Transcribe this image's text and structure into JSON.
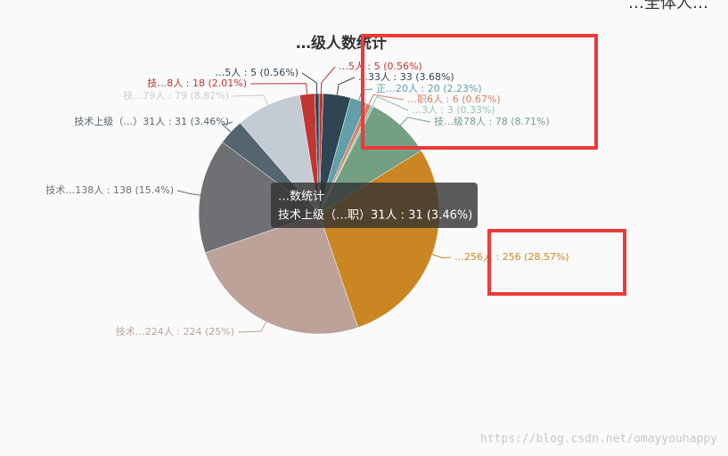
{
  "chart_data": {
    "type": "pie",
    "title": "…级人数统计",
    "corner_text": "…全体人…",
    "categories": [
      "…5人",
      "…33人",
      "正…20人",
      "…职6人",
      "…3人",
      "技…级78人",
      "…256人",
      "技术…224人",
      "技术…138人",
      "技术上级（…）31人",
      "技…79人",
      "技…8人",
      "…5人"
    ],
    "values": [
      5,
      33,
      20,
      6,
      3,
      78,
      256,
      224,
      138,
      31,
      79,
      18,
      5
    ],
    "value_labels": [
      "…5人 : 5 (0.56%)",
      "…33人 : 33 (3.68%)",
      "正…20人 : 20 (2.23%)",
      "…职6人 : 6 (0.67%)",
      "…3人 : 3 (0.33%)",
      "技…级78人 : 78 (8.71%)",
      "…256人 : 256 (28.57%)",
      "技术…224人 : 224 (25%)",
      "技术…138人 : 138 (15.4%)",
      "技术上级（…）31人 : 31 (3.46%)",
      "技…79人 : 79 (8.82%)",
      "技…8人 : 18 (2.01%)",
      "…5人 : 5 (0.56%)"
    ],
    "colors": [
      "#c23531",
      "#2f4554",
      "#61a0a8",
      "#d48265",
      "#91c7ae",
      "#749f83",
      "#ca8622",
      "#bda29a",
      "#6e7074",
      "#546570",
      "#c4ccd3",
      "#c23531",
      "#2f4554"
    ],
    "tooltip": {
      "title": "…数统计",
      "text": "技术上级（…职）31人 : 31 (3.46%)"
    },
    "watermark": "https://blog.csdn.net/omayyouhappy"
  }
}
